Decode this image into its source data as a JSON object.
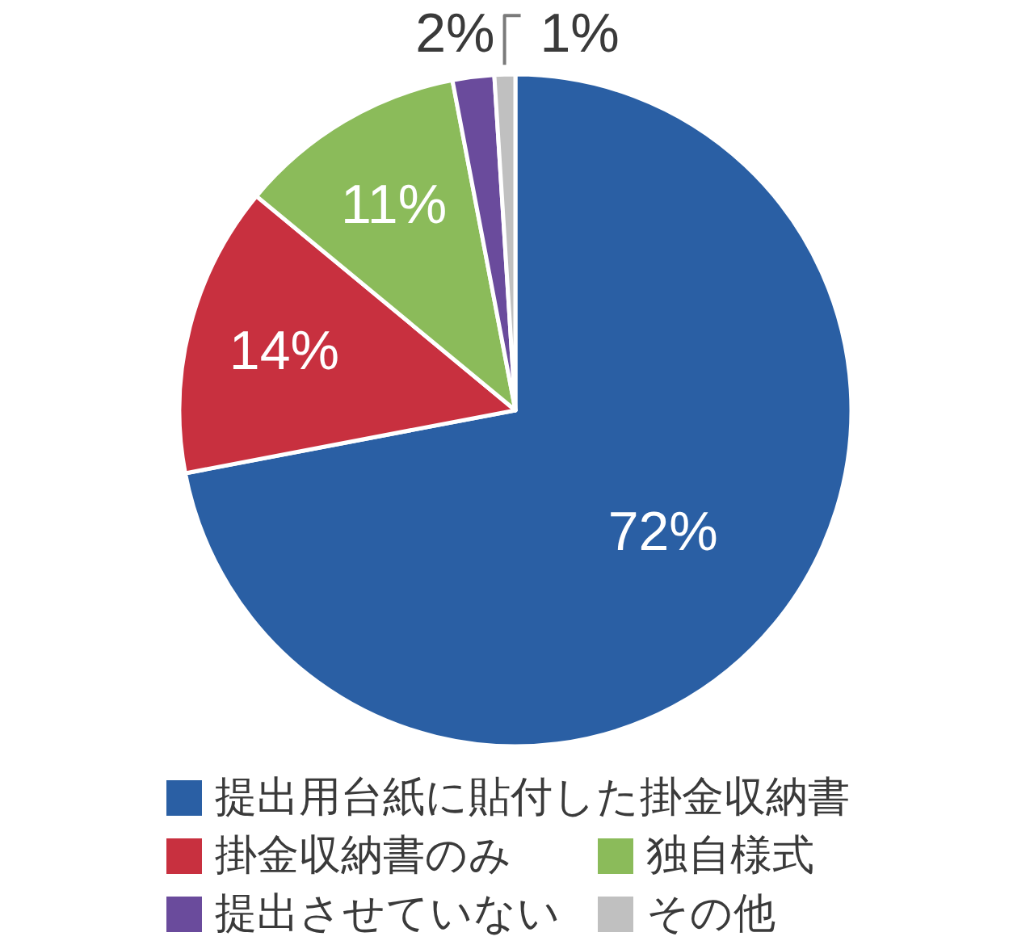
{
  "chart_data": {
    "type": "pie",
    "categories": [
      "提出用台紙に貼付した掛金収納書",
      "掛金収納書のみ",
      "独自様式",
      "提出させていない",
      "その他"
    ],
    "values": [
      72,
      14,
      11,
      2,
      1
    ],
    "colors": [
      "#2a5fa4",
      "#c8303f",
      "#8bbb5a",
      "#6a4b9c",
      "#c0c0c0"
    ],
    "value_labels": [
      "72%",
      "14%",
      "11%",
      "2%",
      "1%"
    ],
    "legend": "bottom"
  }
}
